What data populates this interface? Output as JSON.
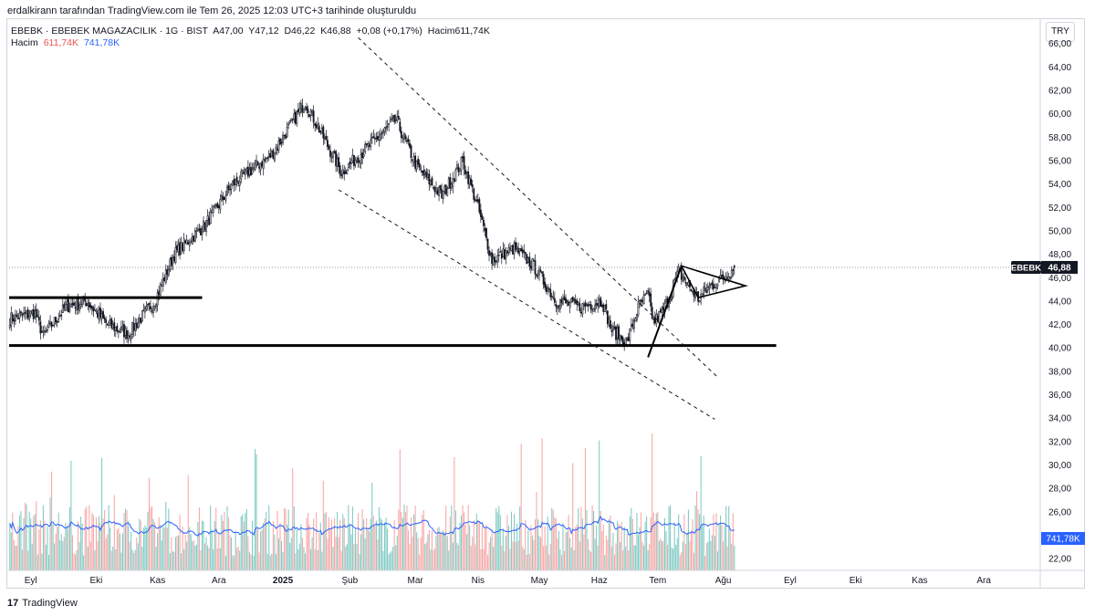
{
  "header": {
    "caption": "erdalkirann tarafından TradingView.com ile Tem 26, 2025 12:03 UTC+3 tarihinde oluşturuldu"
  },
  "legend": {
    "symbol": "EBEBK · EBEBEK MAGAZACILIK · 1G · BIST",
    "open": "A47,00",
    "high": "Y47,12",
    "low": "D46,22",
    "close": "K46,88",
    "change": "+0,08 (+0,17%)",
    "volume_inline": "Hacim611,74K",
    "volume_label": "Hacim",
    "volume_value": "611,74K",
    "volume_ma": "741,78K"
  },
  "currency": "TRY",
  "price_badge": {
    "symbol": "EBEBK",
    "price": "46,88"
  },
  "volume_badge": {
    "value": "741,78K"
  },
  "colors": {
    "up": "#26a69a",
    "down": "#ef5350",
    "vol_up": "#80cbc4",
    "vol_down": "#f7a8a6",
    "ma": "#2962ff"
  },
  "footer": {
    "brand": "TradingView"
  },
  "chart_data": {
    "type": "candlestick",
    "title": "EBEBK · EBEBEK MAGAZACILIK · 1G · BIST",
    "ylim": [
      21,
      68
    ],
    "y_ticks": [
      "22,00",
      "24,00",
      "26,00",
      "28,00",
      "30,00",
      "32,00",
      "34,00",
      "36,00",
      "38,00",
      "40,00",
      "42,00",
      "44,00",
      "46,00",
      "48,00",
      "50,00",
      "52,00",
      "54,00",
      "56,00",
      "58,00",
      "60,00",
      "62,00",
      "64,00",
      "66,00"
    ],
    "y_tick_values": [
      22,
      24,
      26,
      28,
      30,
      32,
      34,
      36,
      38,
      40,
      42,
      44,
      46,
      48,
      50,
      52,
      54,
      56,
      58,
      60,
      62,
      64,
      66
    ],
    "x_ticks": [
      "Eyl",
      "Eki",
      "Kas",
      "Ara",
      "2025",
      "Şub",
      "Mar",
      "Nis",
      "May",
      "Haz",
      "Tem",
      "Ağu",
      "Eyl",
      "Eki",
      "Kas",
      "Ara"
    ],
    "x_tick_index": [
      15,
      62,
      106,
      150,
      196,
      244,
      291,
      336,
      380,
      423,
      465,
      512,
      560,
      607,
      653,
      699
    ],
    "total_slots": 740,
    "last_bar_index": 520,
    "close_anchors": [
      [
        0,
        42.5
      ],
      [
        18,
        43.0
      ],
      [
        24,
        41.0
      ],
      [
        40,
        43.5
      ],
      [
        55,
        44.0
      ],
      [
        70,
        42.0
      ],
      [
        85,
        41.2
      ],
      [
        104,
        44.0
      ],
      [
        118,
        48.0
      ],
      [
        140,
        50.5
      ],
      [
        160,
        54.0
      ],
      [
        188,
        56.5
      ],
      [
        212,
        61.0
      ],
      [
        225,
        58.0
      ],
      [
        238,
        55.0
      ],
      [
        260,
        57.5
      ],
      [
        277,
        59.5
      ],
      [
        292,
        55.5
      ],
      [
        310,
        53.0
      ],
      [
        325,
        56.0
      ],
      [
        336,
        52.0
      ],
      [
        346,
        47.5
      ],
      [
        362,
        48.5
      ],
      [
        376,
        47.0
      ],
      [
        392,
        44.0
      ],
      [
        410,
        43.5
      ],
      [
        425,
        44.0
      ],
      [
        432,
        41.5
      ],
      [
        443,
        40.5
      ],
      [
        451,
        43.5
      ],
      [
        458,
        44.5
      ],
      [
        462,
        42.2
      ],
      [
        468,
        43.0
      ],
      [
        474,
        44.5
      ],
      [
        480,
        46.5
      ],
      [
        486,
        45.5
      ],
      [
        494,
        44.2
      ],
      [
        502,
        45.2
      ],
      [
        510,
        45.8
      ],
      [
        520,
        46.88
      ]
    ],
    "last_candle": {
      "open": 47.0,
      "high": 47.12,
      "low": 46.22,
      "close": 46.88
    },
    "volume": {
      "last": "611,74K",
      "ma": "741,78K"
    },
    "annotations": [
      {
        "type": "horizontal_line",
        "price": 44.3,
        "range": [
          "2024-08",
          "2024-11"
        ],
        "style": "solid"
      },
      {
        "type": "horizontal_line",
        "price": 40.2,
        "range": [
          "2024-08",
          "2025-09"
        ],
        "style": "solid"
      },
      {
        "type": "channel_line",
        "from": [
          250,
          66.5
        ],
        "to": [
          508,
          37.5
        ],
        "style": "dashed"
      },
      {
        "type": "channel_line",
        "from": [
          236,
          53.5
        ],
        "to": [
          506,
          33.9
        ],
        "style": "dashed"
      },
      {
        "type": "flag_pole",
        "from": [
          458,
          39.2
        ],
        "to": [
          482,
          47.0
        ]
      },
      {
        "type": "pennant",
        "points": [
          [
            482,
            47.0
          ],
          [
            528,
            45.3
          ],
          [
            494,
            44.3
          ]
        ]
      },
      {
        "type": "price_line",
        "price": 46.88,
        "style": "dotted"
      }
    ]
  }
}
